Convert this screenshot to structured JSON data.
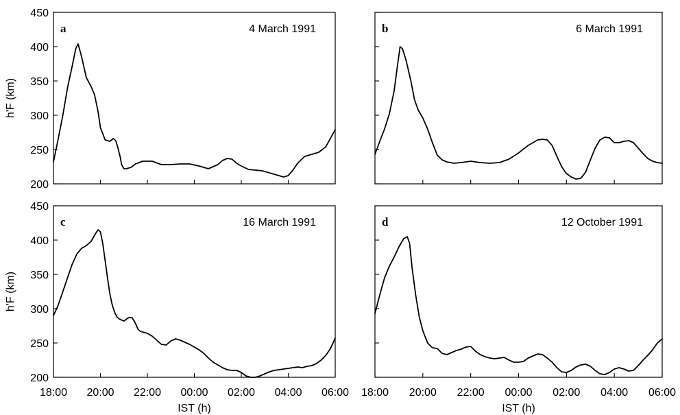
{
  "chart_data": [
    {
      "type": "line",
      "panel_label": "a",
      "title": "4 March 1991",
      "ylabel": "h'F (km)",
      "xlabel": "",
      "ylim": [
        200,
        450
      ],
      "yticks": [
        "200",
        "250",
        "300",
        "350",
        "400",
        "450"
      ],
      "xticks": [],
      "xlim_hours": [
        0,
        12
      ],
      "grid": false,
      "series": [
        {
          "x_hours": [
            0,
            0.2,
            0.4,
            0.6,
            0.8,
            0.95,
            1.05,
            1.2,
            1.4,
            1.6,
            1.75,
            1.9,
            2.0,
            2.2,
            2.4,
            2.55,
            2.65,
            2.75,
            2.85,
            2.9,
            3.0,
            3.1,
            3.3,
            3.5,
            3.8,
            4.2,
            4.6,
            5.0,
            5.4,
            5.8,
            6.2,
            6.6,
            7.0,
            7.2,
            7.4,
            7.6,
            7.8,
            8.0,
            8.3,
            8.6,
            8.9,
            9.2,
            9.5,
            9.8,
            10.0,
            10.2,
            10.4,
            10.7,
            11.0,
            11.3,
            11.6,
            12.0
          ],
          "values": [
            232,
            265,
            300,
            340,
            372,
            397,
            404,
            385,
            355,
            342,
            330,
            305,
            282,
            264,
            262,
            266,
            263,
            252,
            238,
            228,
            222,
            222,
            224,
            229,
            233,
            233,
            228,
            228,
            229,
            229,
            226,
            222,
            228,
            234,
            237,
            236,
            230,
            226,
            221,
            220,
            219,
            216,
            213,
            210,
            212,
            220,
            230,
            240,
            243,
            246,
            254,
            279
          ]
        }
      ]
    },
    {
      "type": "line",
      "panel_label": "b",
      "title": "6 March 1991",
      "ylabel": "",
      "xlabel": "",
      "ylim": [
        200,
        450
      ],
      "yticks": [],
      "xticks": [],
      "xlim_hours": [
        0,
        12
      ],
      "grid": false,
      "series": [
        {
          "x_hours": [
            0,
            0.2,
            0.4,
            0.6,
            0.8,
            0.95,
            1.05,
            1.15,
            1.3,
            1.5,
            1.65,
            1.8,
            2.0,
            2.2,
            2.4,
            2.6,
            2.8,
            3.0,
            3.3,
            3.6,
            4.0,
            4.4,
            4.8,
            5.2,
            5.6,
            6.0,
            6.4,
            6.8,
            7.0,
            7.2,
            7.4,
            7.6,
            7.8,
            8.0,
            8.2,
            8.4,
            8.6,
            8.8,
            9.0,
            9.2,
            9.4,
            9.6,
            9.8,
            10.0,
            10.2,
            10.4,
            10.6,
            10.8,
            11.0,
            11.2,
            11.4,
            11.6,
            11.8,
            12.0
          ],
          "values": [
            243,
            262,
            280,
            302,
            335,
            375,
            400,
            397,
            380,
            350,
            323,
            308,
            296,
            280,
            260,
            242,
            235,
            232,
            230,
            231,
            233,
            231,
            230,
            231,
            236,
            245,
            256,
            264,
            265,
            264,
            256,
            240,
            225,
            215,
            210,
            207,
            208,
            217,
            235,
            252,
            264,
            268,
            267,
            260,
            260,
            262,
            263,
            260,
            252,
            244,
            237,
            233,
            231,
            230
          ]
        }
      ]
    },
    {
      "type": "line",
      "panel_label": "c",
      "title": "16 March 1991",
      "ylabel": "h'F (km)",
      "xlabel": "IST (h)",
      "ylim": [
        200,
        450
      ],
      "yticks": [
        "200",
        "250",
        "300",
        "350",
        "400",
        "450"
      ],
      "xticks": [
        "18:00",
        "20:00",
        "22:00",
        "00:00",
        "02:00",
        "04:00",
        "06:00"
      ],
      "xlim_hours": [
        0,
        12
      ],
      "grid": false,
      "series": [
        {
          "x_hours": [
            0,
            0.2,
            0.4,
            0.6,
            0.8,
            1.0,
            1.2,
            1.4,
            1.6,
            1.8,
            1.9,
            2.0,
            2.1,
            2.2,
            2.3,
            2.4,
            2.5,
            2.6,
            2.7,
            2.8,
            3.0,
            3.2,
            3.35,
            3.5,
            3.6,
            3.7,
            3.8,
            4.0,
            4.2,
            4.4,
            4.6,
            4.8,
            5.0,
            5.2,
            5.4,
            5.6,
            5.8,
            6.0,
            6.2,
            6.4,
            6.6,
            6.8,
            7.0,
            7.2,
            7.4,
            7.6,
            7.8,
            8.0,
            8.2,
            8.4,
            8.6,
            8.8,
            9.0,
            9.2,
            9.4,
            9.6,
            9.8,
            10.0,
            10.2,
            10.4,
            10.6,
            10.8,
            11.0,
            11.2,
            11.4,
            11.6,
            11.8,
            12.0
          ],
          "values": [
            290,
            305,
            325,
            345,
            365,
            380,
            388,
            392,
            398,
            410,
            415,
            412,
            395,
            370,
            345,
            322,
            306,
            295,
            288,
            285,
            282,
            287,
            287,
            278,
            270,
            267,
            266,
            264,
            260,
            254,
            248,
            247,
            253,
            256,
            254,
            251,
            248,
            244,
            240,
            235,
            228,
            222,
            218,
            214,
            211,
            210,
            210,
            207,
            202,
            200,
            200,
            202,
            205,
            208,
            210,
            211,
            212,
            213,
            214,
            215,
            214,
            216,
            217,
            220,
            225,
            232,
            242,
            257
          ]
        }
      ]
    },
    {
      "type": "line",
      "panel_label": "d",
      "title": "12 October 1991",
      "ylabel": "",
      "xlabel": "IST (h)",
      "ylim": [
        200,
        450
      ],
      "yticks": [],
      "xticks": [
        "18:00",
        "20:00",
        "22:00",
        "00:00",
        "02:00",
        "04:00",
        "06:00"
      ],
      "xlim_hours": [
        0,
        12
      ],
      "grid": false,
      "series": [
        {
          "x_hours": [
            0,
            0.2,
            0.4,
            0.6,
            0.8,
            1.0,
            1.2,
            1.35,
            1.45,
            1.55,
            1.7,
            1.85,
            2.0,
            2.2,
            2.4,
            2.6,
            2.8,
            3.0,
            3.2,
            3.4,
            3.6,
            3.8,
            4.0,
            4.2,
            4.4,
            4.6,
            4.8,
            5.0,
            5.2,
            5.4,
            5.6,
            5.8,
            6.0,
            6.2,
            6.4,
            6.6,
            6.8,
            7.0,
            7.2,
            7.4,
            7.6,
            7.8,
            8.0,
            8.2,
            8.4,
            8.6,
            8.8,
            9.0,
            9.2,
            9.4,
            9.6,
            9.8,
            10.0,
            10.2,
            10.4,
            10.6,
            10.8,
            11.0,
            11.2,
            11.4,
            11.6,
            11.8,
            12.0
          ],
          "values": [
            293,
            320,
            345,
            362,
            375,
            390,
            402,
            405,
            395,
            360,
            320,
            288,
            268,
            250,
            243,
            242,
            235,
            233,
            236,
            239,
            241,
            244,
            245,
            238,
            233,
            230,
            228,
            227,
            228,
            229,
            225,
            222,
            222,
            223,
            228,
            231,
            234,
            233,
            228,
            222,
            214,
            208,
            207,
            210,
            215,
            218,
            219,
            216,
            210,
            205,
            204,
            207,
            212,
            214,
            212,
            209,
            210,
            217,
            225,
            232,
            240,
            250,
            256
          ]
        }
      ]
    }
  ]
}
